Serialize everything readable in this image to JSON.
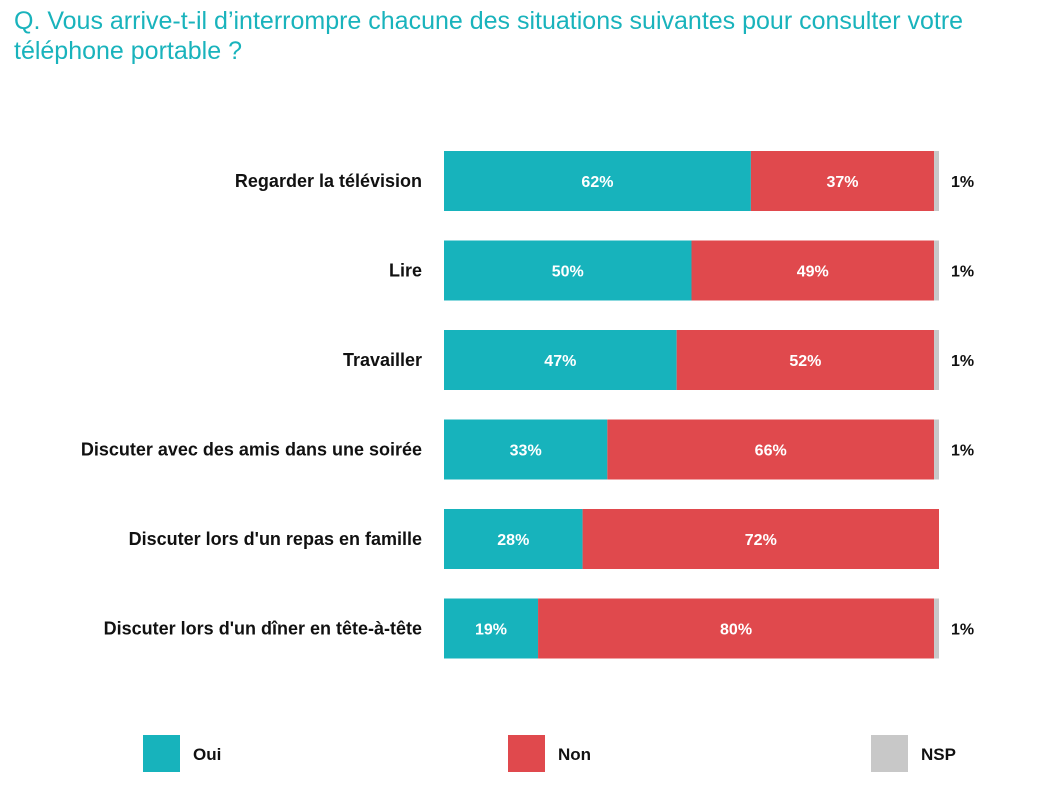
{
  "title": "Q. Vous arrive-t-il d’interrompre chacune des situations suivantes pour consulter votre téléphone portable ?",
  "colors": {
    "oui": "#17b3bc",
    "non": "#e0494d",
    "nsp": "#c8c8c8"
  },
  "chart_data": {
    "type": "bar",
    "orientation": "horizontal",
    "stacked": true,
    "title": "Q. Vous arrive-t-il d’interrompre chacune des situations suivantes pour consulter votre téléphone portable ?",
    "categories": [
      "Regarder la télévision",
      "Lire",
      "Travailler",
      "Discuter avec des amis dans une soirée",
      "Discuter lors d'un repas en famille",
      "Discuter lors d'un dîner en tête-à-tête"
    ],
    "series": [
      {
        "name": "Oui",
        "values": [
          62,
          50,
          47,
          33,
          28,
          19
        ]
      },
      {
        "name": "Non",
        "values": [
          37,
          49,
          52,
          66,
          72,
          80
        ]
      },
      {
        "name": "NSP",
        "values": [
          1,
          1,
          1,
          1,
          0,
          1
        ]
      }
    ],
    "value_suffix": "%",
    "legend": "bottom",
    "grid": false
  }
}
